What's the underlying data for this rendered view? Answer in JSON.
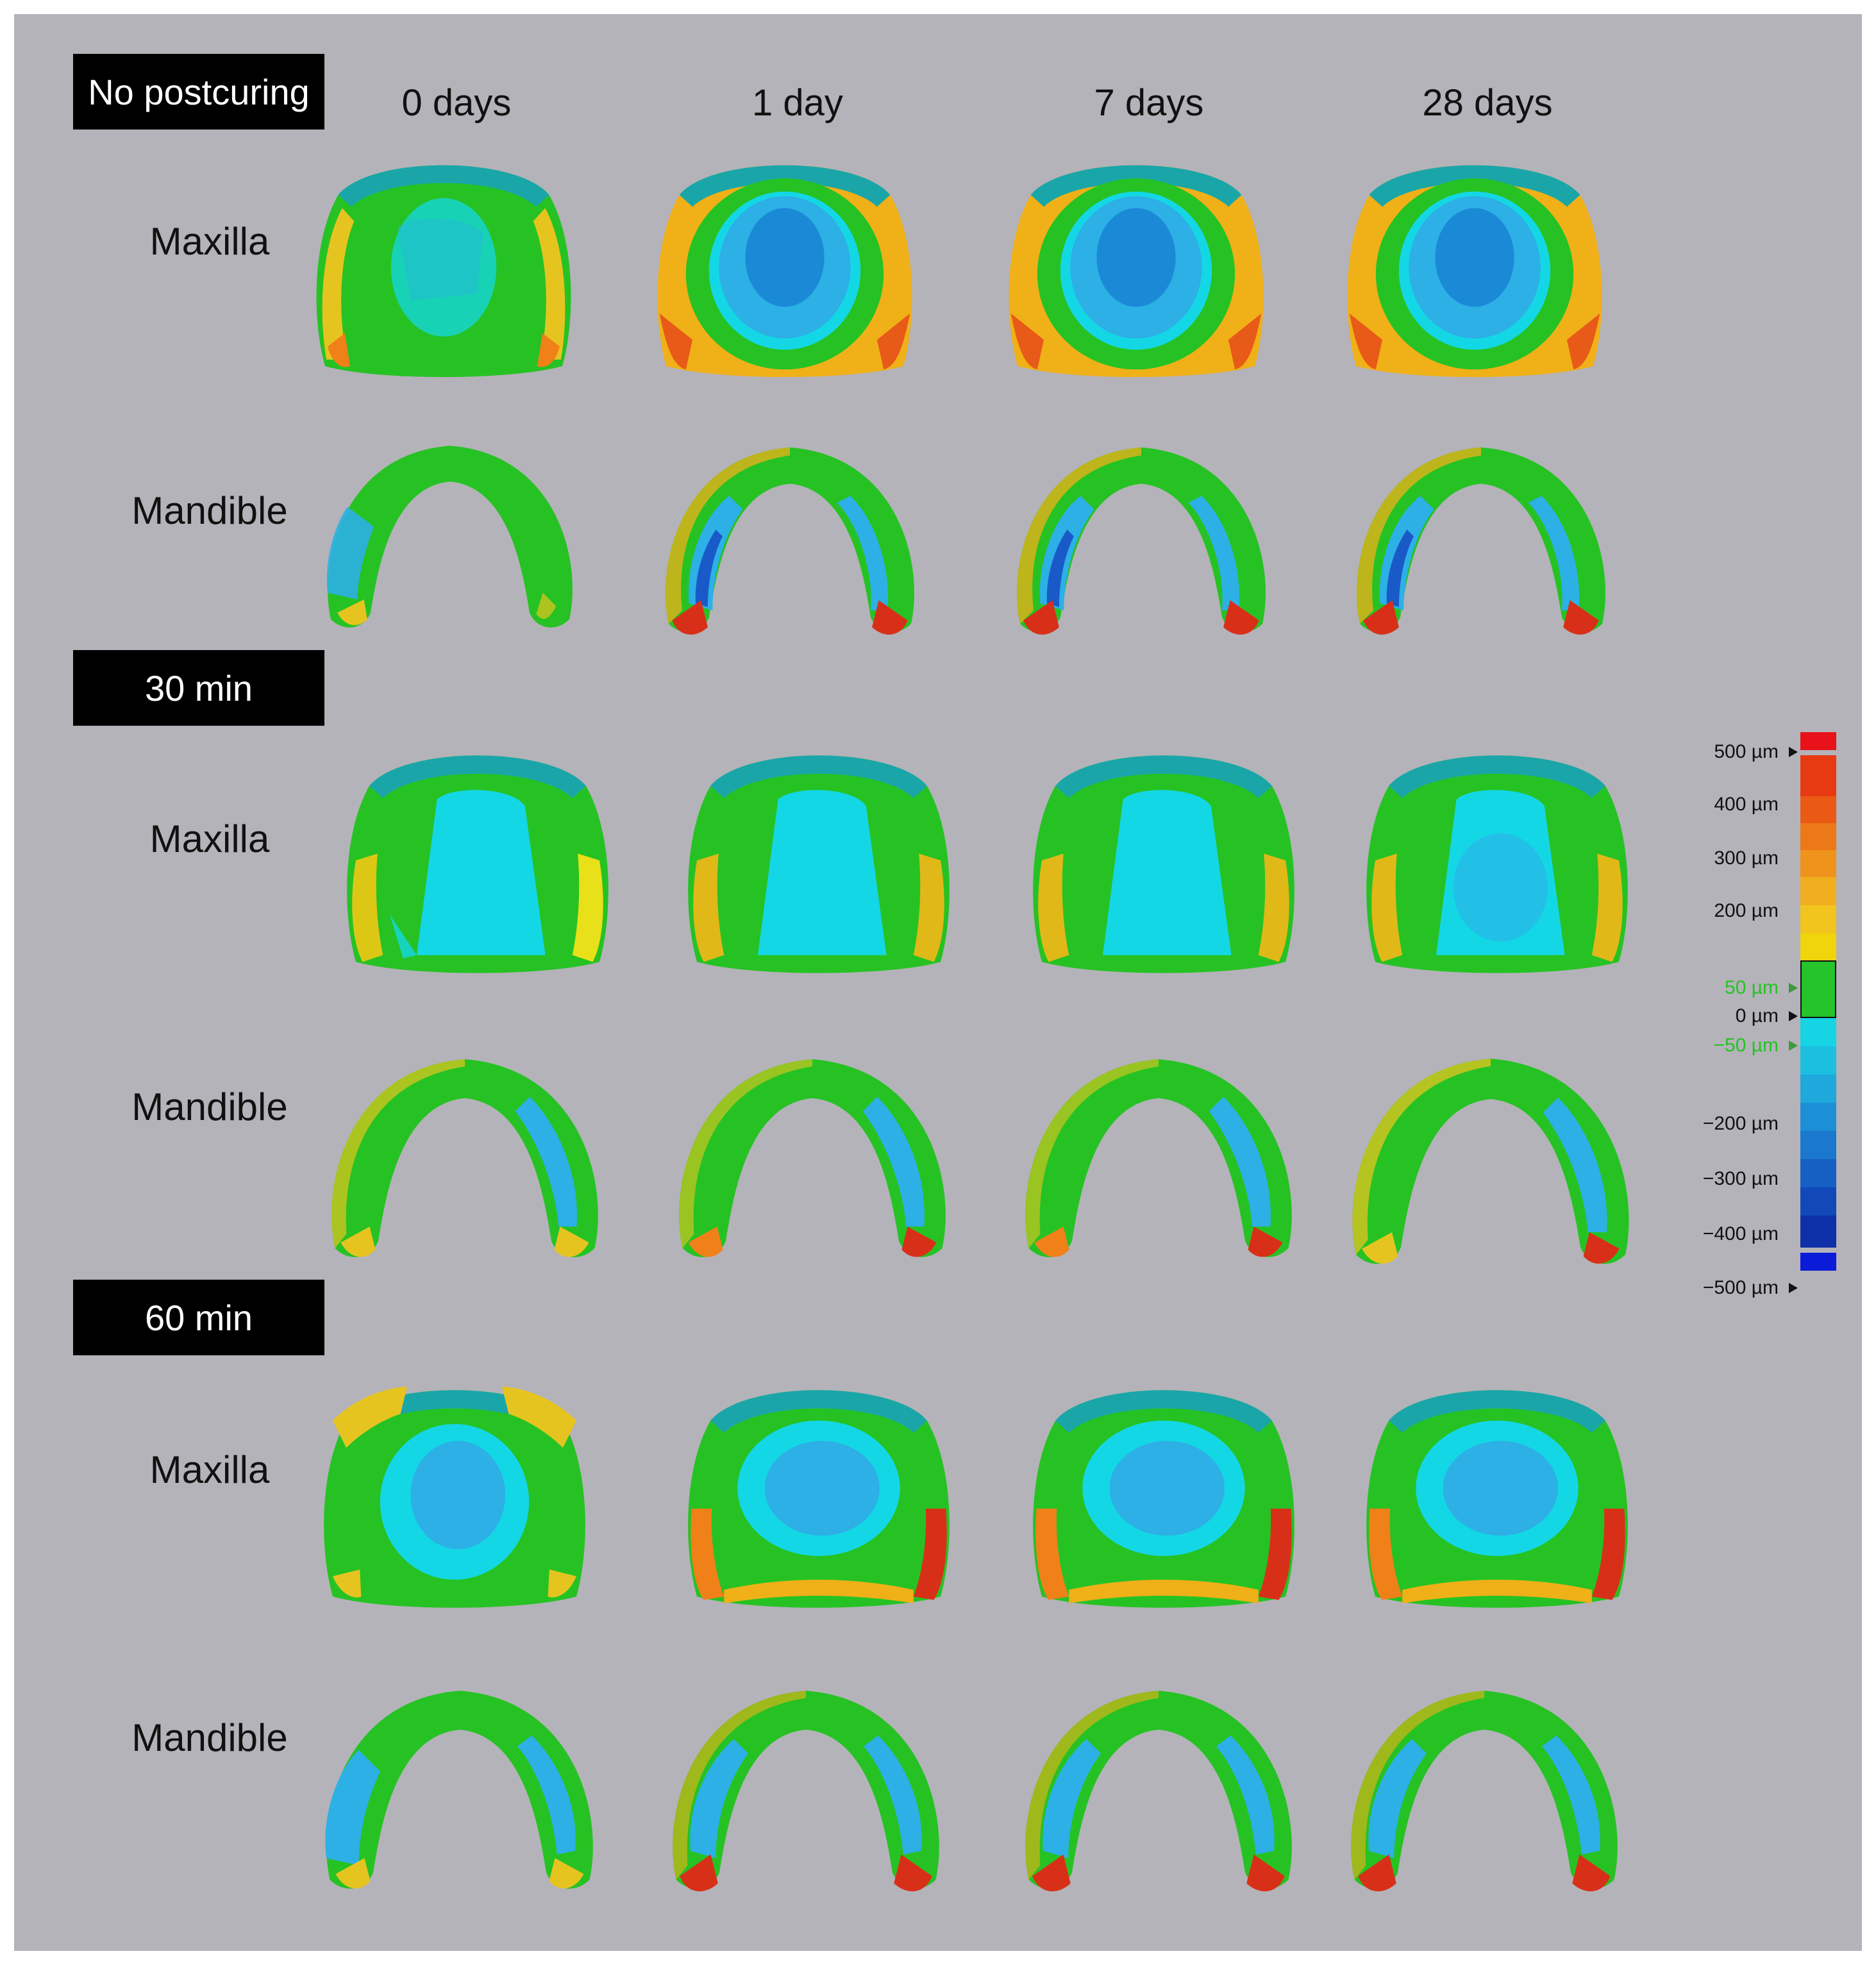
{
  "columns": [
    "0 days",
    "1 day",
    "7 days",
    "28 days"
  ],
  "groups": [
    {
      "label": "No postcuring",
      "rows": [
        "Maxilla",
        "Mandible"
      ]
    },
    {
      "label": "30 min",
      "rows": [
        "Maxilla",
        "Mandible"
      ]
    },
    {
      "label": "60 min",
      "rows": [
        "Maxilla",
        "Mandible"
      ]
    }
  ],
  "legend": {
    "labels": [
      "500 µm",
      "400 µm",
      "300 µm",
      "200 µm",
      "50 µm",
      "0 µm",
      "−50 µm",
      "−200 µm",
      "−300 µm",
      "−400 µm",
      "−500 µm"
    ],
    "tolerance_color": "#25c42a",
    "positive_colors": [
      "#e8121a",
      "#e83a12",
      "#ea5a14",
      "#ec7818",
      "#ee941c",
      "#f0ae1e",
      "#f2c41e",
      "#f0d40c"
    ],
    "negative_colors": [
      "#16d4e4",
      "#1cbfe0",
      "#1ea8dc",
      "#1c90d6",
      "#1a78ce",
      "#1660c4",
      "#1248b8",
      "#0e30a8",
      "#0a1cd8"
    ]
  },
  "colors": {
    "panel_background": "#b4b3b9",
    "green": "#26c224",
    "cyan": "#14d7e5",
    "light_blue": "#2cb0e6",
    "blue": "#1a8ad6",
    "yellow": "#e6d010",
    "orange": "#f08018",
    "red": "#d83018"
  }
}
